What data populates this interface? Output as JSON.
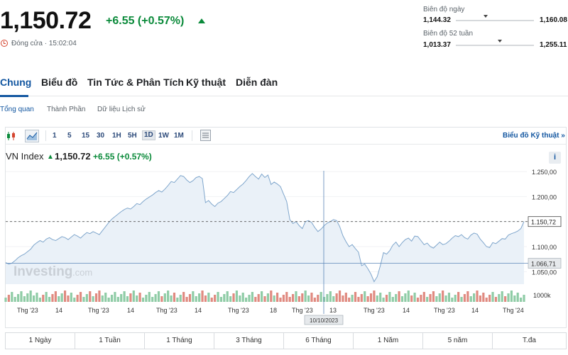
{
  "quote": {
    "price": "1,150.72",
    "change": "+6.55 (+0.57%)",
    "status": "Đóng cửa · 15:02:04"
  },
  "ranges": {
    "day": {
      "label": "Biên độ ngày",
      "low": "1,144.32",
      "high": "1,160.08",
      "marker_fraction": 0.38
    },
    "week52": {
      "label": "Biên độ 52 tuần",
      "low": "1,013.37",
      "high": "1,255.11",
      "marker_fraction": 0.56
    }
  },
  "tabs": [
    "Chung",
    "Biểu đồ",
    "Tin Tức & Phân Tích",
    "Kỹ thuật",
    "Diễn đàn"
  ],
  "subtabs": [
    "Tổng quan",
    "Thành Phần",
    "Dữ liệu Lịch sử"
  ],
  "toolbar": {
    "timeframes": [
      "1",
      "5",
      "15",
      "30",
      "1H",
      "5H",
      "1D",
      "1W",
      "1M"
    ],
    "active_timeframe": "1D",
    "technical_link": "Biểu đồ Kỹ thuật »",
    "icons": [
      "candlestick-icon",
      "area-chart-icon",
      "calendar-grid-icon"
    ]
  },
  "legend": {
    "name": "VN Index",
    "price": "1,150.72",
    "change": "+6.55 (+0.57%)",
    "info": "i"
  },
  "watermark": {
    "brand": "Investing",
    "suffix": ".com"
  },
  "crosshair": {
    "date_label": "10/10/2023",
    "price_label": "1.066,71",
    "price_value": 1066.71
  },
  "last_price_label": "1.150,72",
  "volume_label": "1000k",
  "periods": [
    "1 Ngày",
    "1 Tuần",
    "1 Tháng",
    "3 Tháng",
    "6 Tháng",
    "1 Năm",
    "5 năm",
    "T.đa"
  ],
  "colors": {
    "accent": "#1256a0",
    "up": "#0a8a3a",
    "down": "#d4442e",
    "line": "#7fa6cc",
    "fill": "#eaf1f8"
  },
  "chart_data": {
    "type": "area",
    "series": [
      {
        "values": [
          1068,
          1065,
          1067,
          1072,
          1078,
          1082,
          1085,
          1090,
          1095,
          1103,
          1108,
          1112,
          1109,
          1115,
          1118,
          1114,
          1112,
          1116,
          1120,
          1118,
          1114,
          1119,
          1124,
          1121,
          1117,
          1123,
          1128,
          1126,
          1130,
          1127,
          1124,
          1132,
          1140,
          1148,
          1155,
          1160,
          1165,
          1170,
          1174,
          1177,
          1175,
          1180,
          1186,
          1184,
          1190,
          1195,
          1199,
          1203,
          1208,
          1212,
          1209,
          1215,
          1222,
          1230,
          1228,
          1235,
          1242,
          1240,
          1233,
          1228,
          1232,
          1238,
          1240,
          1236,
          1188,
          1192,
          1185,
          1180,
          1187,
          1190,
          1196,
          1202,
          1210,
          1208,
          1214,
          1220,
          1225,
          1232,
          1240,
          1246,
          1240,
          1235,
          1245,
          1238,
          1243,
          1224,
          1229,
          1225,
          1220,
          1205,
          1190,
          1154,
          1146,
          1150,
          1142,
          1136,
          1150,
          1152,
          1148,
          1138,
          1130,
          1135,
          1142,
          1147,
          1150,
          1154,
          1152,
          1140,
          1122,
          1110,
          1100,
          1104,
          1096,
          1089,
          1062,
          1065,
          1056,
          1045,
          1030,
          1040,
          1062,
          1088,
          1085,
          1092,
          1103,
          1109,
          1100,
          1108,
          1114,
          1117,
          1111,
          1121,
          1120,
          1112,
          1104,
          1107,
          1100,
          1097,
          1103,
          1109,
          1104,
          1106,
          1111,
          1117,
          1122,
          1120,
          1124,
          1118,
          1115,
          1123,
          1127,
          1125,
          1115,
          1108,
          1100,
          1098,
          1108,
          1106,
          1111,
          1116,
          1115,
          1123,
          1126,
          1128,
          1131,
          1136,
          1150
        ]
      }
    ],
    "x_tick_labels": [
      "Thg '23",
      "14",
      "Thg '23",
      "14",
      "Thg '23",
      "14",
      "Thg '23",
      "18",
      "Thg '23",
      "13",
      "Thg '23",
      "14",
      "Thg '23",
      "14",
      "Thg '24"
    ],
    "y_tick_labels": [
      "1.250,00",
      "1.200,00",
      "1.150,00",
      "1.100,00",
      "1.050,00"
    ],
    "ylim": [
      1025,
      1260
    ]
  }
}
